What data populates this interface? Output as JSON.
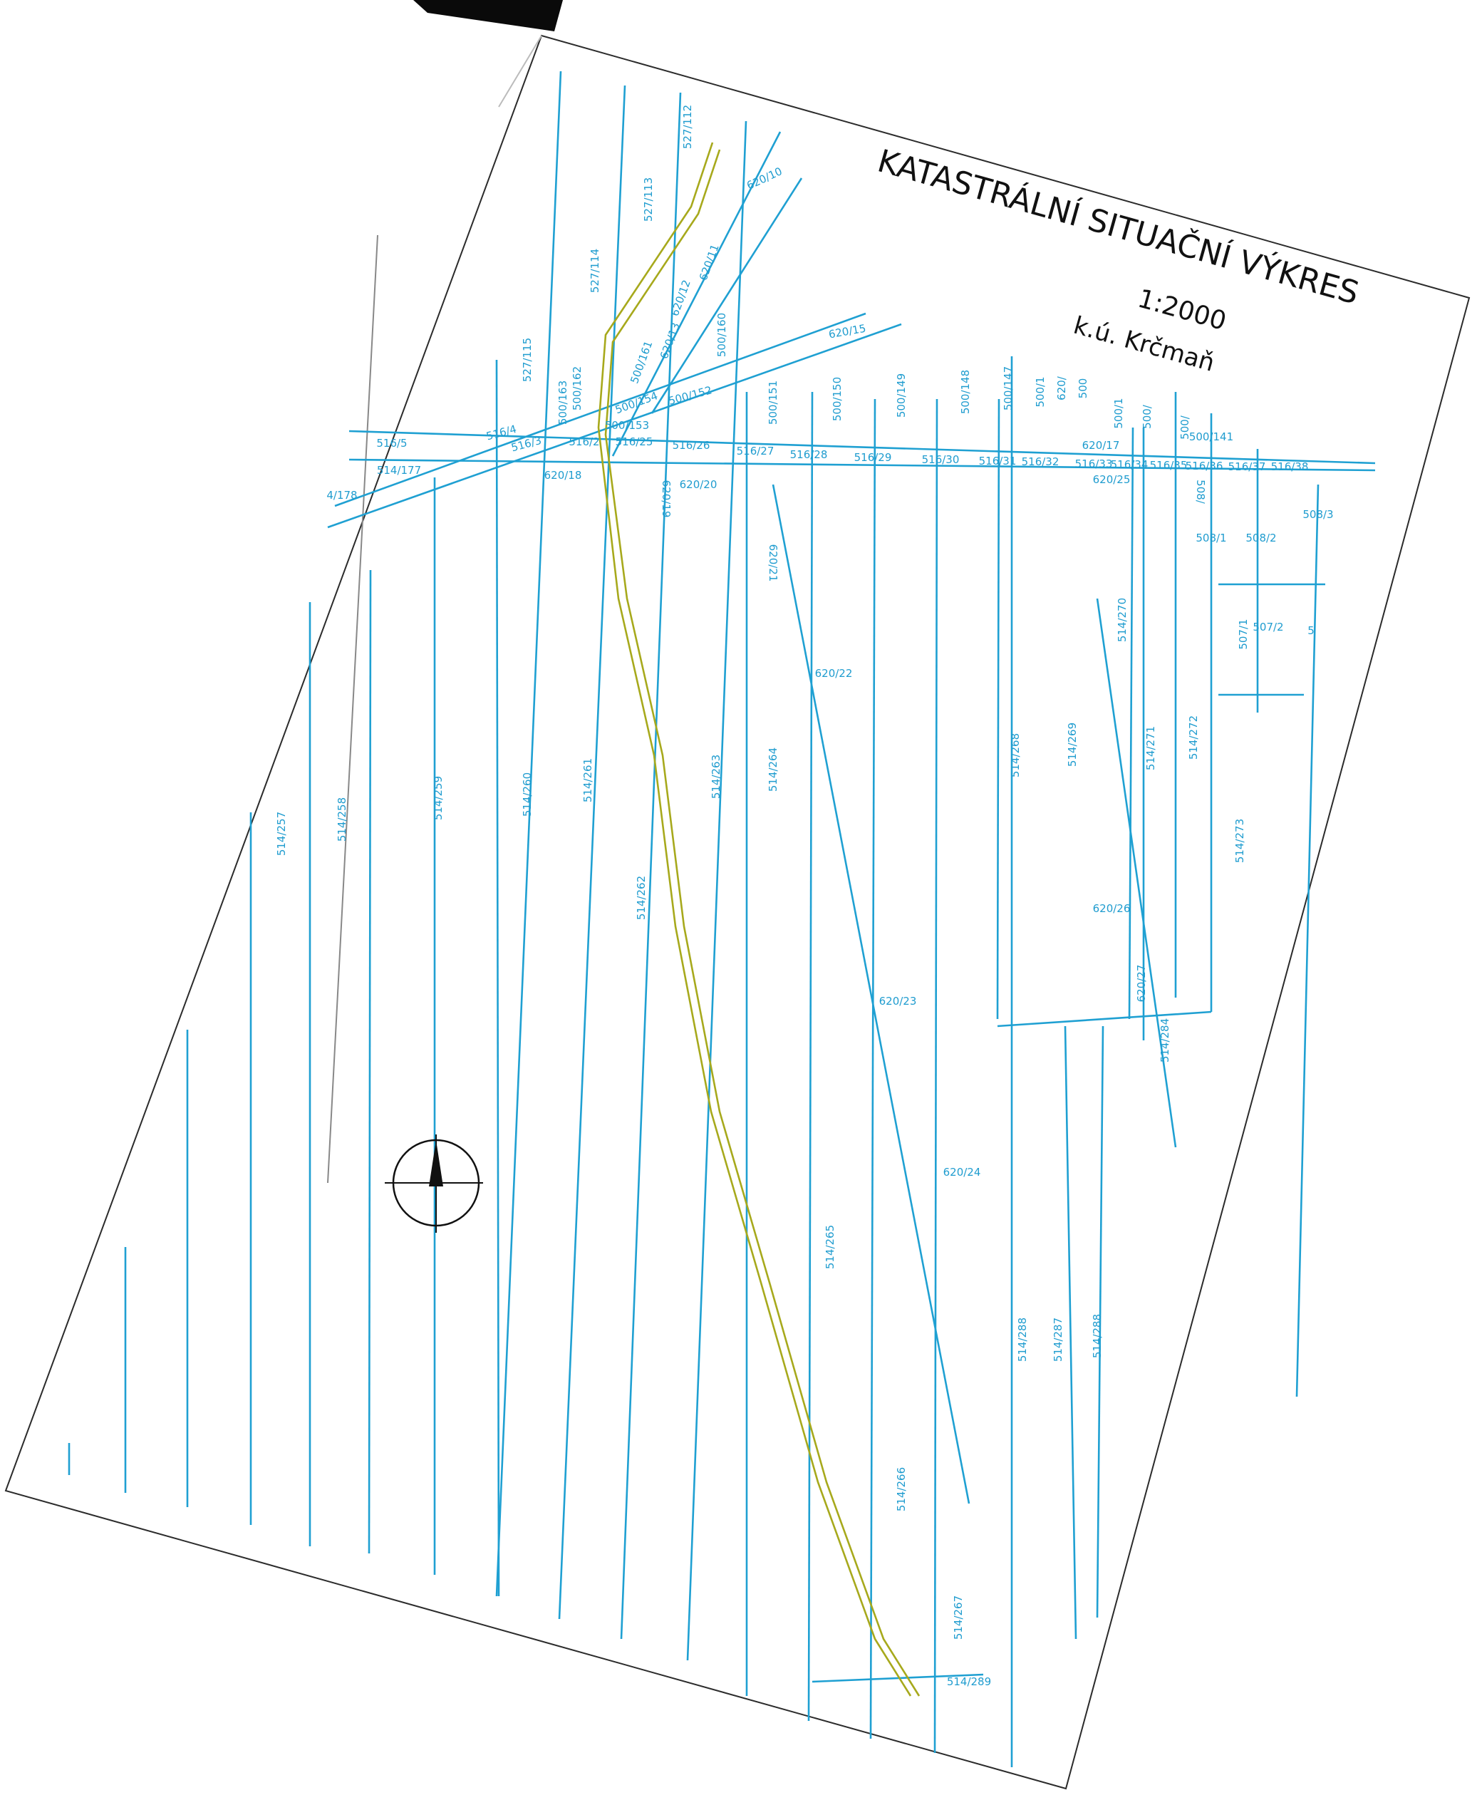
{
  "map": {
    "title": "KATASTRÁLNÍ SITUAČNÍ VÝKRES",
    "scale": "1:2000",
    "cadastral_area": "k.ú. Krčmaň",
    "colors": {
      "parcel_lines": "#1fa0d2",
      "railway_track": "#a7a91c",
      "title_text": "#111111"
    },
    "north_arrow_icon": "north-arrow-icon",
    "parcel_labels": [
      "527/112",
      "527/113",
      "620/10",
      "527/114",
      "620/11",
      "620/12",
      "500/160",
      "620/13",
      "500/161",
      "527/115",
      "500/163",
      "500/162",
      "500/154",
      "500/152",
      "620/15",
      "500/151",
      "500/150",
      "500/149",
      "500/148",
      "500/147",
      "500/1",
      "620/",
      "500",
      "500/1",
      "500/",
      "500/",
      "500/141",
      "500/153",
      "516/4",
      "516/3",
      "516/2",
      "516/25",
      "516/26",
      "516/27",
      "516/28",
      "516/29",
      "516/30",
      "516/31",
      "516/32",
      "516/33",
      "516/34",
      "516/35",
      "516/36",
      "516/37",
      "516/38",
      "516/5",
      "514/177",
      "4/178",
      "620/18",
      "620/20",
      "620/19",
      "620/17",
      "620/25",
      "508/",
      "508/1",
      "508/2",
      "508/3",
      "620/21",
      "514/270",
      "507/1",
      "507/2",
      "5",
      "620/22",
      "514/257",
      "514/258",
      "514/259",
      "514/260",
      "514/261",
      "514/262",
      "514/263",
      "514/264",
      "514/268",
      "514/269",
      "514/271",
      "514/272",
      "514/273",
      "620/26",
      "620/23",
      "620/27",
      "514/284",
      "620/24",
      "514/265",
      "514/288",
      "514/287",
      "514/288",
      "514/266",
      "514/267",
      "514/289"
    ]
  }
}
